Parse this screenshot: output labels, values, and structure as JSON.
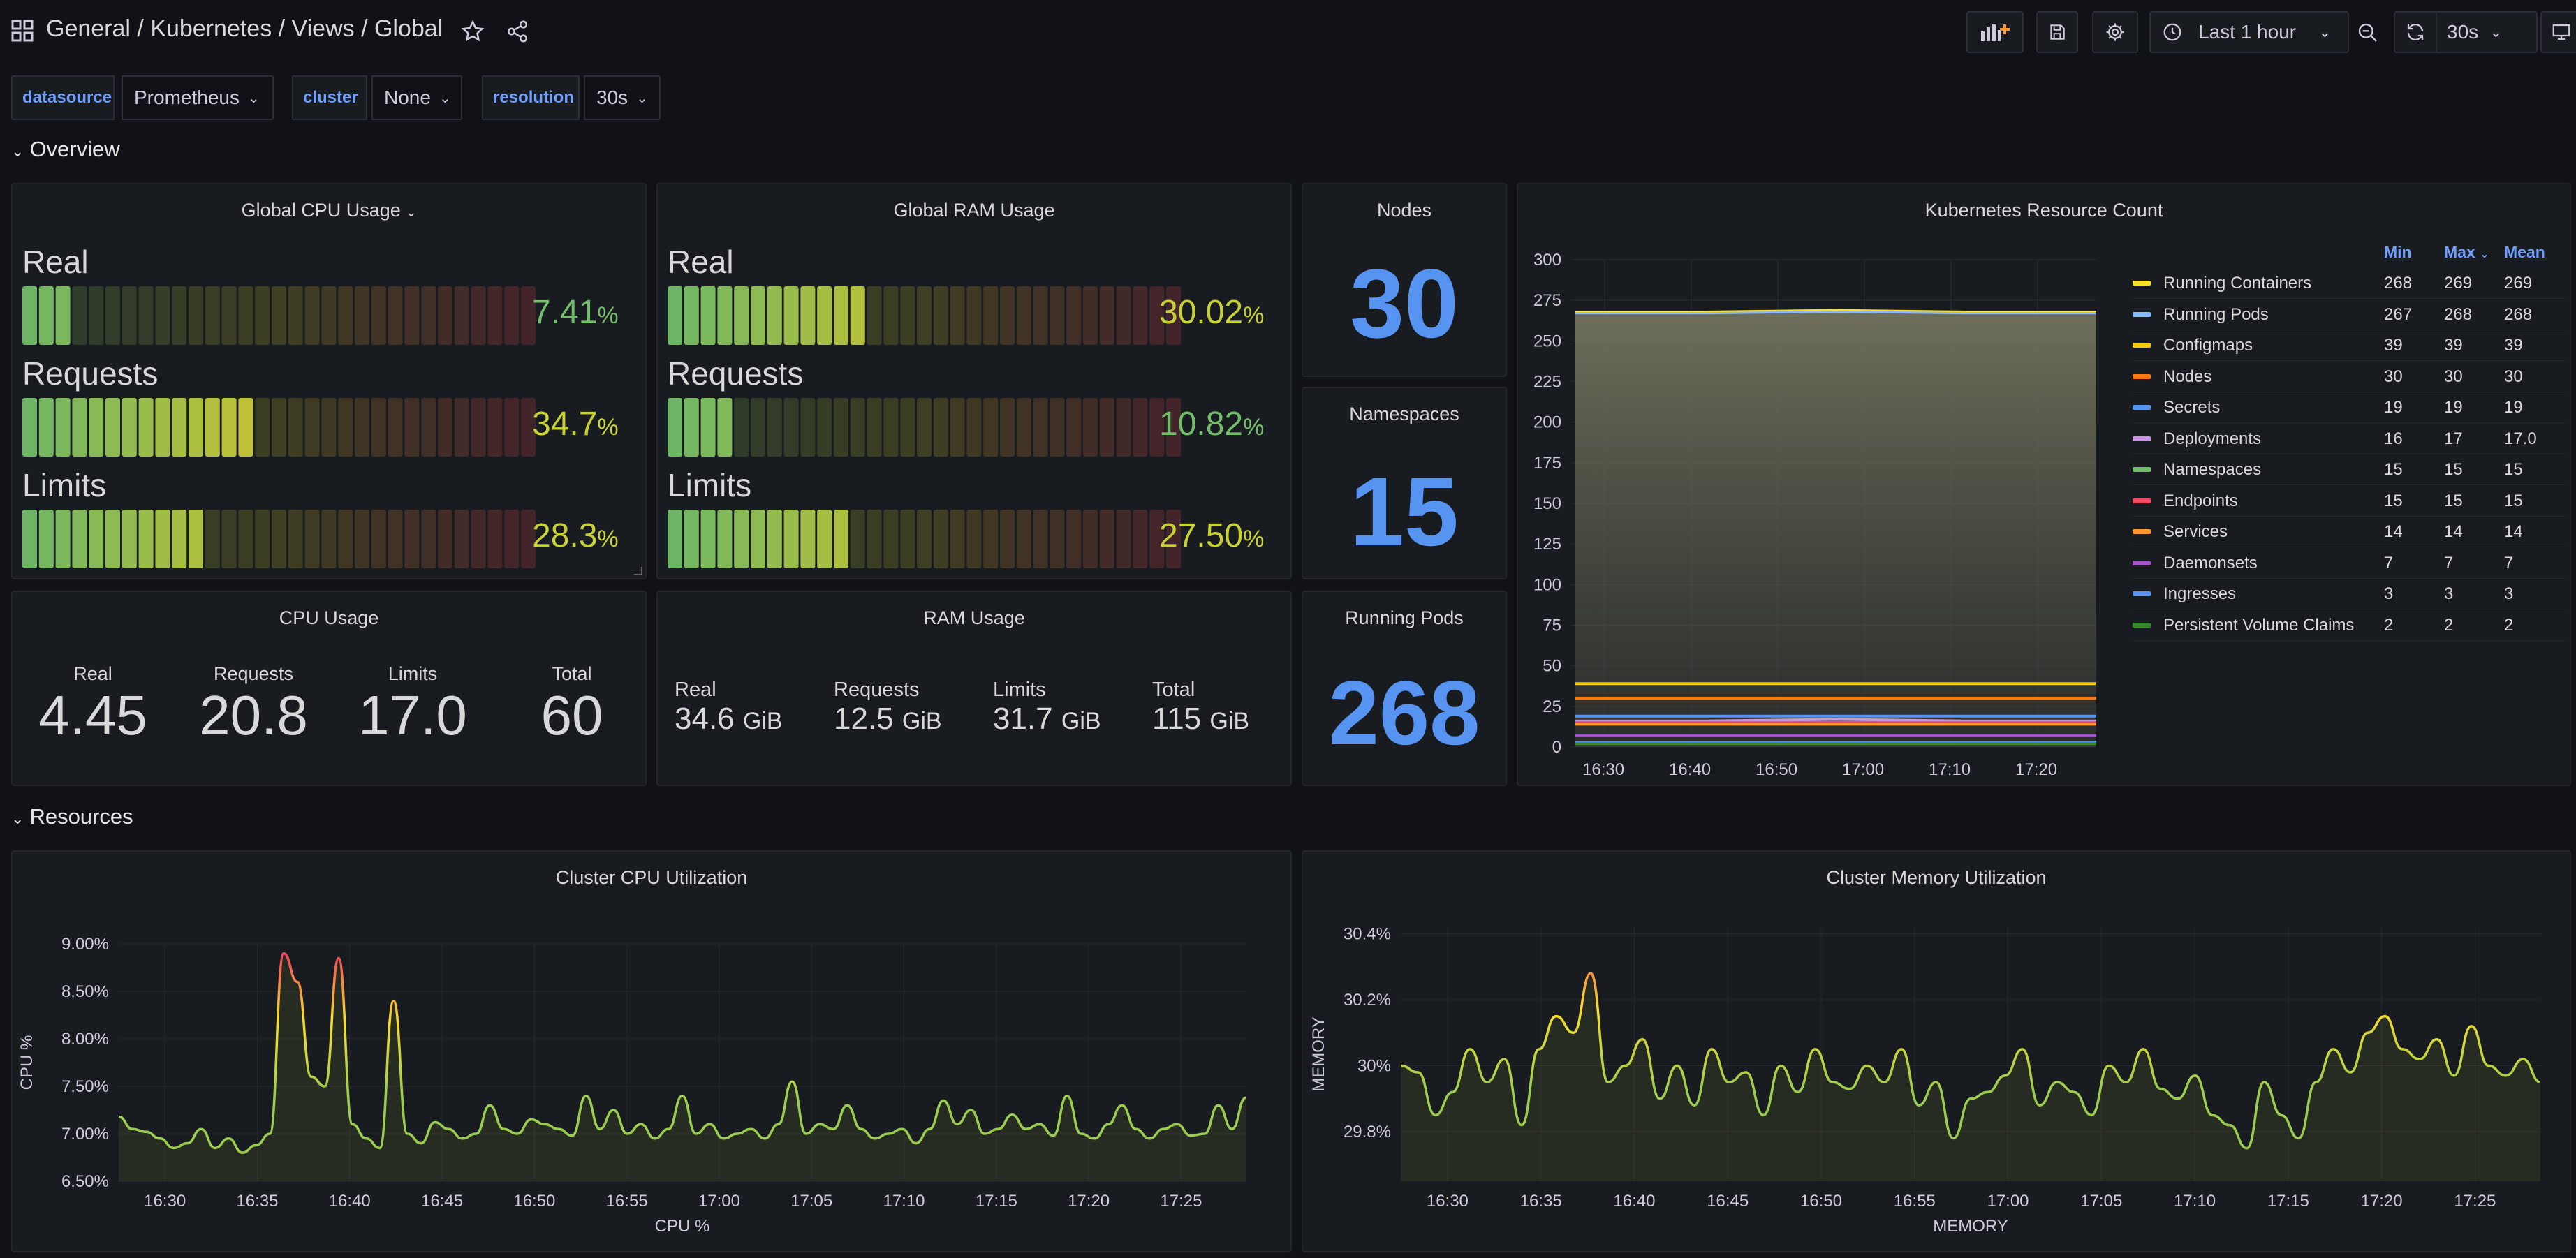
{
  "breadcrumb": {
    "root": "General",
    "path": "/ Kubernetes / Views / Global"
  },
  "toolbar": {
    "time_range": "Last 1 hour",
    "refresh": "30s"
  },
  "variables": [
    {
      "label": "datasource",
      "value": "Prometheus"
    },
    {
      "label": "cluster",
      "value": "None"
    },
    {
      "label": "resolution",
      "value": "30s"
    }
  ],
  "rows": {
    "overview": "Overview",
    "resources": "Resources"
  },
  "colors": {
    "accent": "#5794f2",
    "green": "#73bf69",
    "yellow": "#fade2a",
    "red": "#f2495c",
    "bg": "#111217",
    "panel": "#181b1f"
  },
  "global_cpu": {
    "title": "Global CPU Usage",
    "bars": [
      {
        "label": "Real",
        "value": "7.41",
        "unit": "%",
        "fraction": 0.0741,
        "color": "#73bf69"
      },
      {
        "label": "Requests",
        "value": "34.7",
        "unit": "%",
        "fraction": 0.347,
        "color": "#c8d233"
      },
      {
        "label": "Limits",
        "value": "28.3",
        "unit": "%",
        "fraction": 0.283,
        "color": "#c8d233"
      }
    ]
  },
  "global_ram": {
    "title": "Global RAM Usage",
    "bars": [
      {
        "label": "Real",
        "value": "30.02",
        "unit": "%",
        "fraction": 0.3002,
        "color": "#c8d233"
      },
      {
        "label": "Requests",
        "value": "10.82",
        "unit": "%",
        "fraction": 0.1082,
        "color": "#73bf69"
      },
      {
        "label": "Limits",
        "value": "27.50",
        "unit": "%",
        "fraction": 0.275,
        "color": "#c8d233"
      }
    ]
  },
  "nodes": {
    "title": "Nodes",
    "value": "30"
  },
  "namespaces": {
    "title": "Namespaces",
    "value": "15"
  },
  "running_pods": {
    "title": "Running Pods",
    "value": "268"
  },
  "cpu_usage": {
    "title": "CPU Usage",
    "items": [
      {
        "label": "Real",
        "value": "4.45"
      },
      {
        "label": "Requests",
        "value": "20.8"
      },
      {
        "label": "Limits",
        "value": "17.0"
      },
      {
        "label": "Total",
        "value": "60"
      }
    ]
  },
  "ram_usage": {
    "title": "RAM Usage",
    "items": [
      {
        "label": "Real",
        "value": "34.6",
        "unit": "GiB"
      },
      {
        "label": "Requests",
        "value": "12.5",
        "unit": "GiB"
      },
      {
        "label": "Limits",
        "value": "31.7",
        "unit": "GiB"
      },
      {
        "label": "Total",
        "value": "115",
        "unit": "GiB"
      }
    ]
  },
  "resource_count": {
    "title": "Kubernetes Resource Count",
    "columns": [
      "Min",
      "Max",
      "Mean"
    ],
    "legend": [
      {
        "name": "Running Containers",
        "color": "#fade2a",
        "min": "268",
        "max": "269",
        "mean": "269"
      },
      {
        "name": "Running Pods",
        "color": "#8ab8ff",
        "min": "267",
        "max": "268",
        "mean": "268"
      },
      {
        "name": "Configmaps",
        "color": "#f2cc0c",
        "min": "39",
        "max": "39",
        "mean": "39"
      },
      {
        "name": "Nodes",
        "color": "#ff780a",
        "min": "30",
        "max": "30",
        "mean": "30"
      },
      {
        "name": "Secrets",
        "color": "#5794f2",
        "min": "19",
        "max": "19",
        "mean": "19"
      },
      {
        "name": "Deployments",
        "color": "#ca95e5",
        "min": "16",
        "max": "17",
        "mean": "17.0"
      },
      {
        "name": "Namespaces",
        "color": "#73bf69",
        "min": "15",
        "max": "15",
        "mean": "15"
      },
      {
        "name": "Endpoints",
        "color": "#f2495c",
        "min": "15",
        "max": "15",
        "mean": "15"
      },
      {
        "name": "Services",
        "color": "#ff9830",
        "min": "14",
        "max": "14",
        "mean": "14"
      },
      {
        "name": "Daemonsets",
        "color": "#a352cc",
        "min": "7",
        "max": "7",
        "mean": "7"
      },
      {
        "name": "Ingresses",
        "color": "#5794f2",
        "min": "3",
        "max": "3",
        "mean": "3"
      },
      {
        "name": "Persistent Volume Claims",
        "color": "#37872d",
        "min": "2",
        "max": "2",
        "mean": "2"
      }
    ]
  },
  "chart_data": [
    {
      "type": "area",
      "title": "Kubernetes Resource Count",
      "ylim": [
        0,
        300
      ],
      "yticks": [
        "0",
        "25",
        "50",
        "75",
        "100",
        "125",
        "150",
        "175",
        "200",
        "225",
        "250",
        "275",
        "300"
      ],
      "xticks": [
        "16:30",
        "16:40",
        "16:50",
        "17:00",
        "17:10",
        "17:20"
      ],
      "xlim": [
        "16:26",
        "17:28"
      ],
      "series": [
        {
          "name": "Running Containers",
          "values": [
            268,
            268,
            269,
            268,
            268
          ]
        },
        {
          "name": "Running Pods",
          "values": [
            267,
            267,
            268,
            267,
            267
          ]
        },
        {
          "name": "Configmaps",
          "values": [
            39,
            39,
            39,
            39,
            39
          ]
        },
        {
          "name": "Nodes",
          "values": [
            30,
            30,
            30,
            30,
            30
          ]
        },
        {
          "name": "Secrets",
          "values": [
            19,
            19,
            19,
            19,
            19
          ]
        },
        {
          "name": "Deployments",
          "values": [
            16,
            16,
            17,
            16,
            16
          ]
        },
        {
          "name": "Namespaces",
          "values": [
            15,
            15,
            15,
            15,
            15
          ]
        },
        {
          "name": "Endpoints",
          "values": [
            15,
            15,
            15,
            15,
            15
          ]
        },
        {
          "name": "Services",
          "values": [
            14,
            14,
            14,
            14,
            14
          ]
        },
        {
          "name": "Daemonsets",
          "values": [
            7,
            7,
            7,
            7,
            7
          ]
        },
        {
          "name": "Ingresses",
          "values": [
            3,
            3,
            3,
            3,
            3
          ]
        },
        {
          "name": "Persistent Volume Claims",
          "values": [
            2,
            2,
            2,
            2,
            2
          ]
        }
      ]
    },
    {
      "type": "line",
      "title": "Cluster CPU Utilization",
      "xlabel": "CPU %",
      "ylabel": "CPU %",
      "ylim": [
        6.5,
        9.0
      ],
      "yticks": [
        "6.50%",
        "7.00%",
        "7.50%",
        "8.00%",
        "8.50%",
        "9.00%"
      ],
      "xticks": [
        "16:30",
        "16:35",
        "16:40",
        "16:45",
        "16:50",
        "16:55",
        "17:00",
        "17:05",
        "17:10",
        "17:15",
        "17:20",
        "17:25"
      ],
      "x_start": "16:27",
      "x_end": "17:28",
      "values": [
        7.18,
        7.05,
        7.02,
        6.95,
        6.85,
        6.9,
        7.05,
        6.85,
        6.95,
        6.8,
        6.88,
        7.0,
        8.9,
        8.6,
        7.6,
        7.5,
        8.85,
        7.1,
        6.95,
        6.85,
        8.4,
        7.0,
        6.9,
        7.12,
        7.05,
        6.95,
        7.0,
        7.3,
        7.05,
        7.0,
        7.15,
        7.1,
        7.05,
        6.98,
        7.4,
        7.05,
        7.25,
        7.0,
        7.1,
        6.95,
        7.05,
        7.4,
        7.0,
        7.1,
        6.95,
        7.0,
        7.05,
        6.95,
        7.1,
        7.55,
        7.0,
        7.1,
        7.05,
        7.3,
        7.05,
        6.95,
        7.0,
        7.05,
        6.9,
        7.05,
        7.35,
        7.1,
        7.25,
        7.0,
        7.05,
        7.2,
        7.05,
        7.1,
        6.98,
        7.4,
        7.0,
        6.95,
        7.1,
        7.3,
        7.05,
        6.95,
        7.05,
        7.1,
        6.98,
        7.0,
        7.3,
        7.05,
        7.38
      ]
    },
    {
      "type": "line",
      "title": "Cluster Memory Utilization",
      "xlabel": "MEMORY",
      "ylabel": "MEMORY",
      "ylim": [
        29.65,
        30.42
      ],
      "yticks": [
        "29.8%",
        "30%",
        "30.2%",
        "30.4%"
      ],
      "xticks": [
        "16:30",
        "16:35",
        "16:40",
        "16:45",
        "16:50",
        "16:55",
        "17:00",
        "17:05",
        "17:10",
        "17:15",
        "17:20",
        "17:25"
      ],
      "x_start": "16:27",
      "x_end": "17:28",
      "values": [
        30.0,
        29.98,
        29.85,
        29.92,
        30.05,
        29.95,
        30.02,
        29.82,
        30.05,
        30.15,
        30.1,
        30.28,
        29.95,
        30.0,
        30.08,
        29.9,
        30.0,
        29.88,
        30.05,
        29.95,
        29.98,
        29.85,
        30.0,
        29.92,
        30.05,
        29.95,
        29.93,
        30.0,
        29.95,
        30.05,
        29.88,
        29.95,
        29.78,
        29.9,
        29.92,
        29.97,
        30.05,
        29.88,
        29.95,
        29.92,
        29.85,
        30.0,
        29.95,
        30.05,
        29.93,
        29.9,
        29.97,
        29.85,
        29.82,
        29.75,
        29.95,
        29.85,
        29.78,
        29.95,
        30.05,
        29.98,
        30.1,
        30.15,
        30.05,
        30.02,
        30.08,
        29.97,
        30.12,
        30.0,
        29.97,
        30.02,
        29.95
      ]
    }
  ]
}
